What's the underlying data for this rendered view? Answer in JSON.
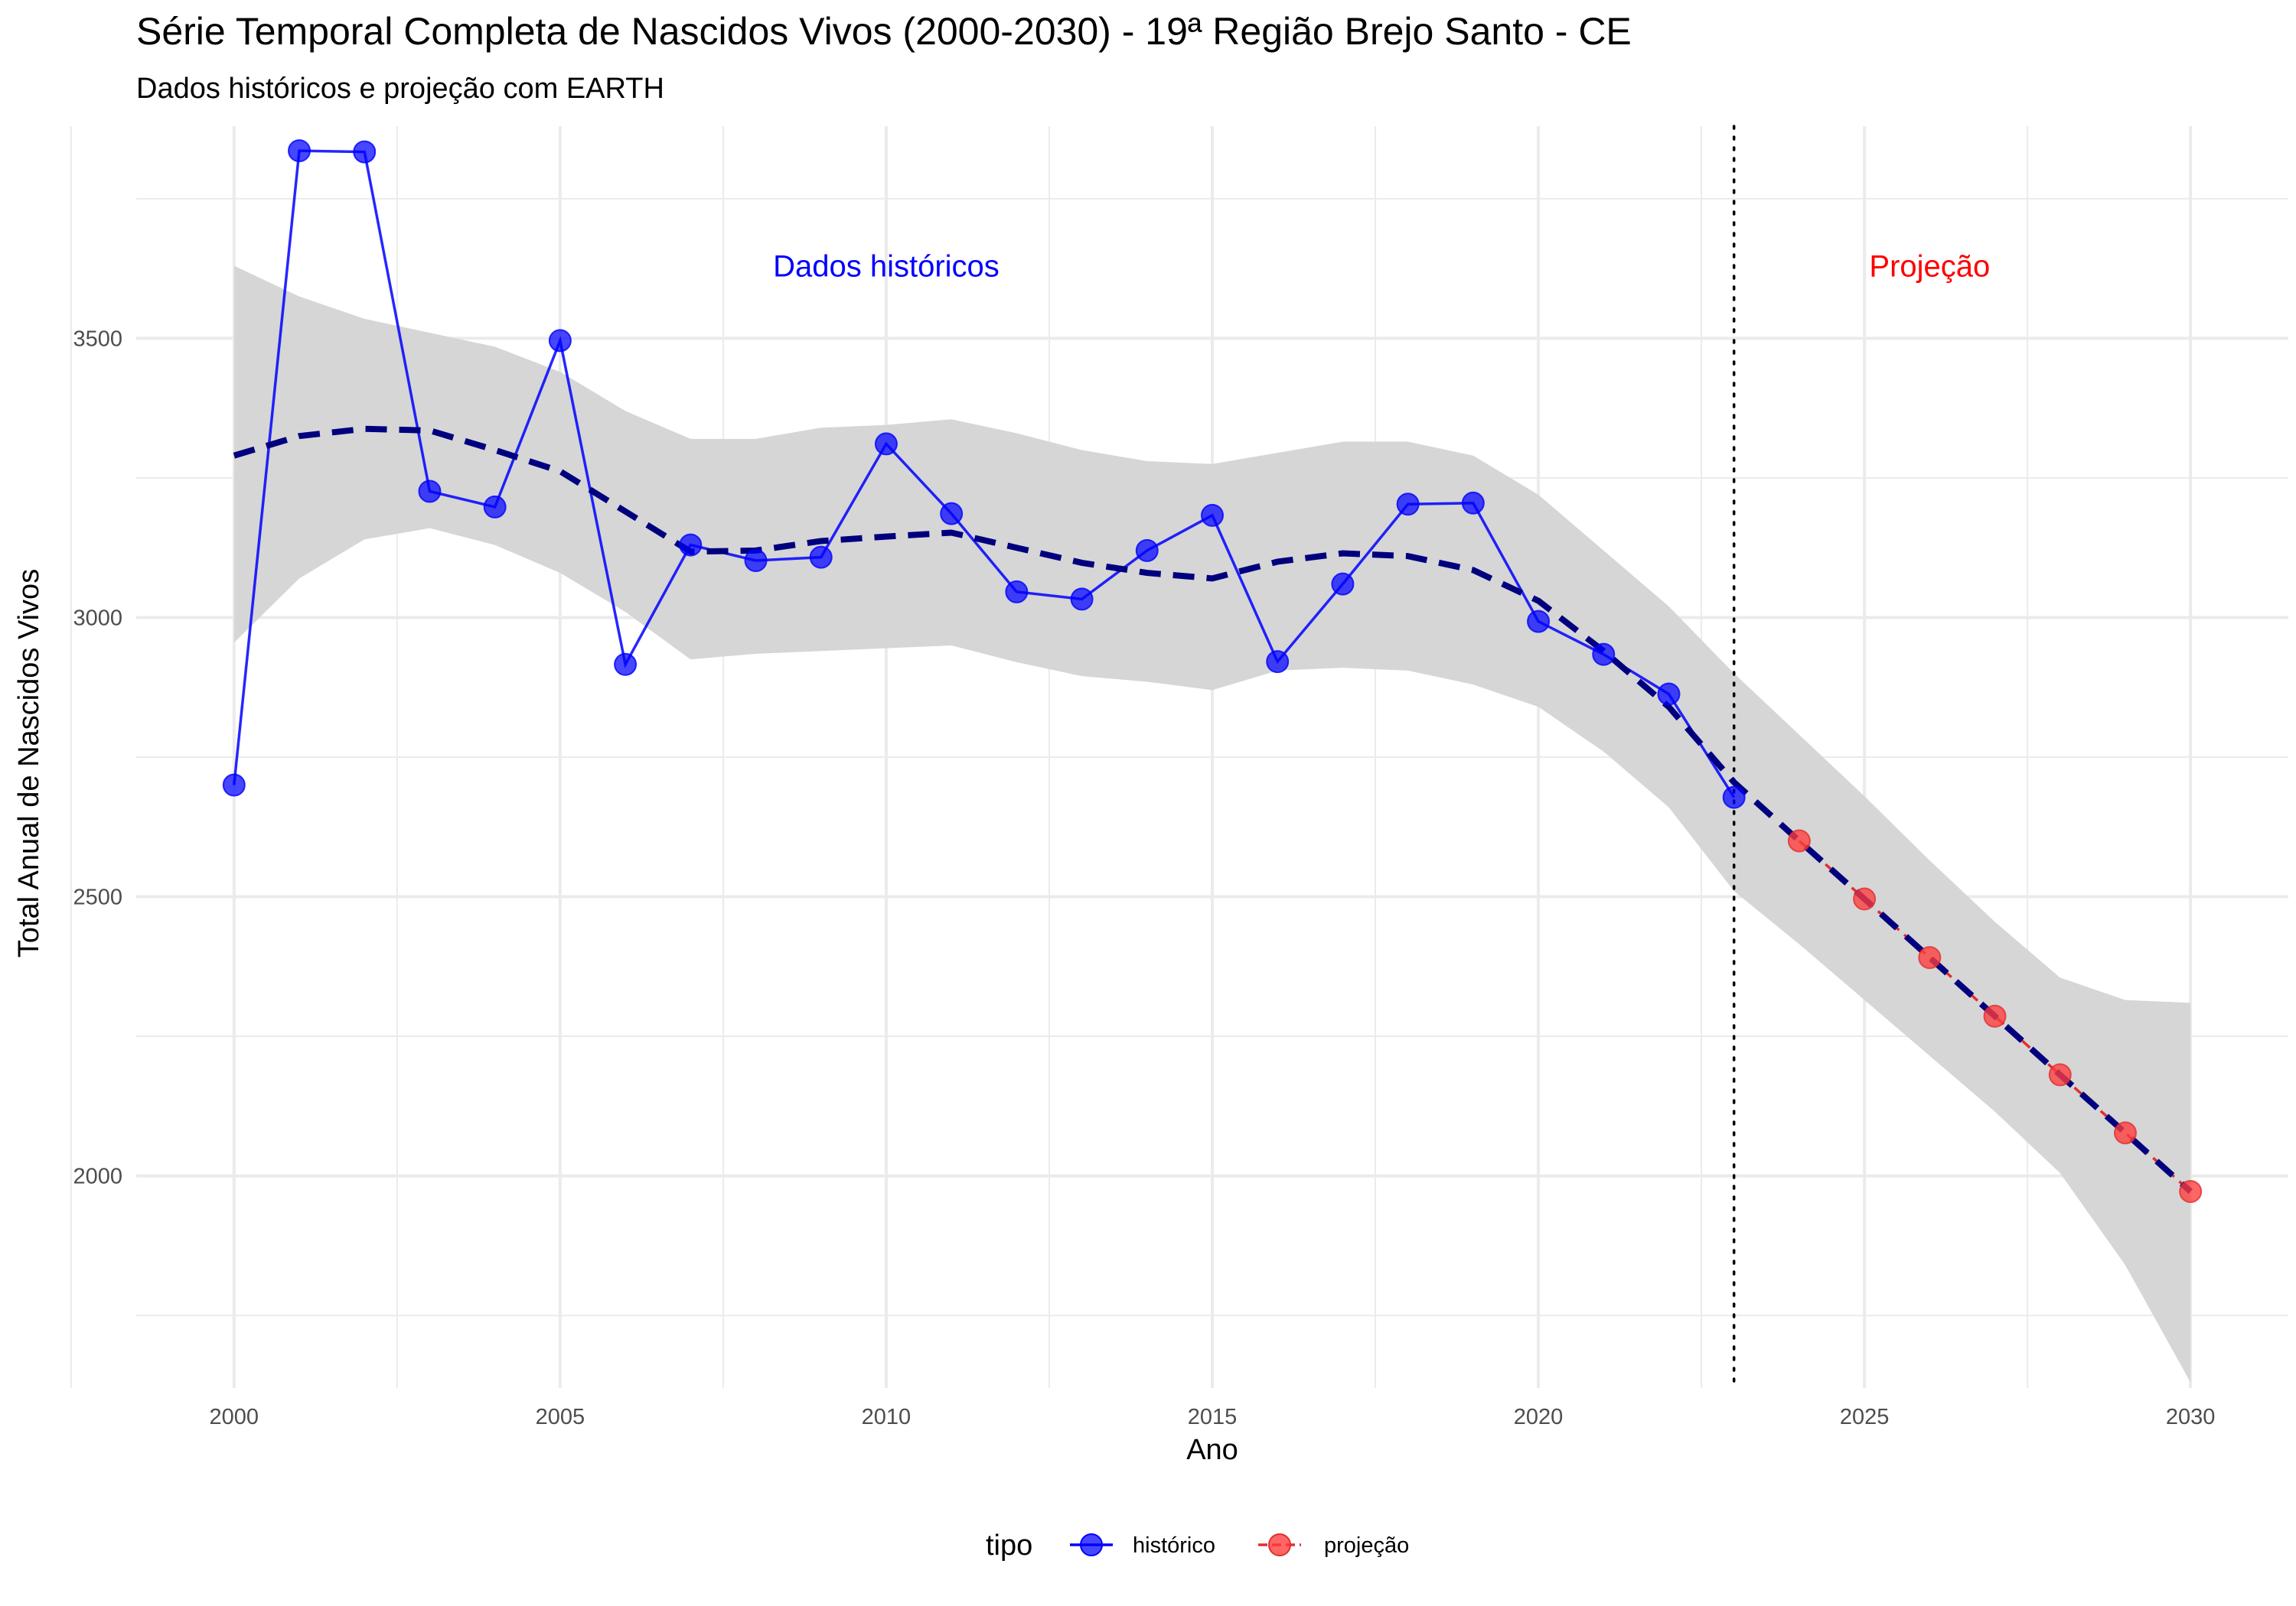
{
  "chart_data": {
    "type": "line",
    "title": "Série Temporal Completa de Nascidos Vivos (2000-2030) -  19ª Região Brejo Santo - CE",
    "subtitle": "Dados históricos e projeção com EARTH",
    "xlabel": "Ano",
    "ylabel": "Total Anual de Nascidos Vivos",
    "xlim": [
      1998.5,
      2031.5
    ],
    "ylim": [
      1620,
      3880
    ],
    "x_ticks": [
      2000,
      2005,
      2010,
      2015,
      2020,
      2025,
      2030
    ],
    "y_ticks": [
      2000,
      2500,
      3000,
      3500
    ],
    "grid": true,
    "legend": {
      "title": "tipo",
      "position": "bottom",
      "entries": [
        {
          "label": "histórico",
          "color": "#0000ff"
        },
        {
          "label": "projeção",
          "color": "#ff3b3b"
        }
      ]
    },
    "series": [
      {
        "name": "histórico",
        "color": "#0000ff",
        "x": [
          2000,
          2001,
          2002,
          2003,
          2004,
          2005,
          2006,
          2007,
          2008,
          2009,
          2010,
          2011,
          2012,
          2013,
          2014,
          2015,
          2016,
          2017,
          2018,
          2019,
          2020,
          2021,
          2022,
          2023
        ],
        "y": [
          2700,
          3836,
          3834,
          3226,
          3198,
          3496,
          2916,
          3130,
          3102,
          3108,
          3311,
          3186,
          3046,
          3033,
          3120,
          3183,
          2921,
          3060,
          3203,
          3205,
          2993,
          2934,
          2863,
          2678
        ]
      },
      {
        "name": "projeção",
        "color": "#ff3b3b",
        "x": [
          2024,
          2025,
          2026,
          2027,
          2028,
          2029,
          2030
        ],
        "y": [
          2600,
          2496,
          2391,
          2286,
          2181,
          2077,
          1972
        ]
      }
    ],
    "smooth": {
      "color": "#00007f",
      "band_color": "#d6d6d6",
      "x": [
        2000,
        2001,
        2002,
        2003,
        2004,
        2005,
        2006,
        2007,
        2008,
        2009,
        2010,
        2011,
        2012,
        2013,
        2014,
        2015,
        2016,
        2017,
        2018,
        2019,
        2020,
        2021,
        2022,
        2023,
        2024,
        2025,
        2026,
        2027,
        2028,
        2029,
        2030
      ],
      "y": [
        3290,
        3325,
        3338,
        3335,
        3300,
        3262,
        3190,
        3118,
        3120,
        3137,
        3145,
        3152,
        3125,
        3098,
        3080,
        3070,
        3100,
        3115,
        3110,
        3085,
        3030,
        2940,
        2840,
        2705,
        2600,
        2496,
        2391,
        2286,
        2181,
        2077,
        1972
      ],
      "lower": [
        2955,
        3070,
        3140,
        3160,
        3130,
        3080,
        3010,
        2925,
        2935,
        2940,
        2945,
        2950,
        2920,
        2895,
        2885,
        2870,
        2905,
        2910,
        2905,
        2880,
        2840,
        2760,
        2660,
        2510,
        2415,
        2315,
        2215,
        2115,
        2005,
        1840,
        1630
      ],
      "upper": [
        3630,
        3575,
        3535,
        3510,
        3485,
        3440,
        3370,
        3320,
        3320,
        3340,
        3345,
        3355,
        3330,
        3300,
        3280,
        3275,
        3295,
        3315,
        3315,
        3290,
        3220,
        3120,
        3020,
        2900,
        2790,
        2680,
        2565,
        2455,
        2355,
        2315,
        2310
      ]
    },
    "vline_x": 2023,
    "annotations": [
      {
        "text": "Dados históricos",
        "x": 2010,
        "y": 3630,
        "color": "#0000ff"
      },
      {
        "text": "Projeção",
        "x": 2026,
        "y": 3630,
        "color": "#ff0000"
      }
    ]
  }
}
